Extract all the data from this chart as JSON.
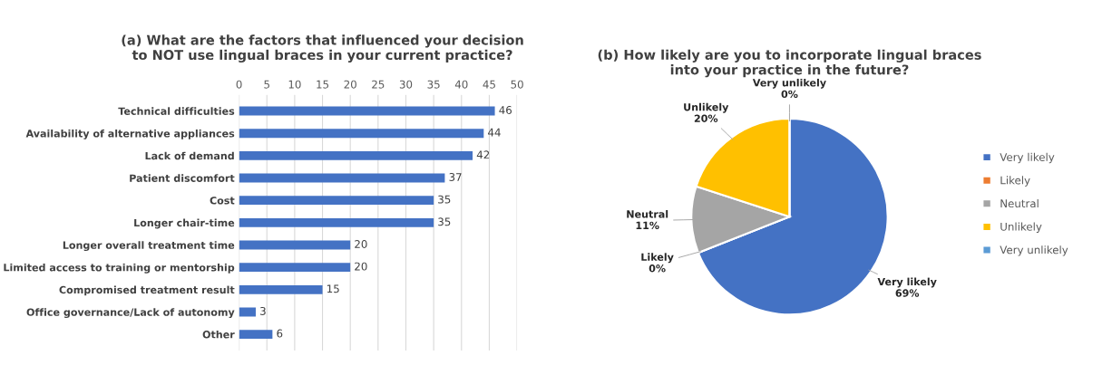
{
  "chart_data": [
    {
      "type": "bar",
      "orientation": "horizontal",
      "title": "(a) What are the factors that influenced your decision\nto NOT use lingual braces in your current practice?",
      "categories": [
        "Technical difficulties",
        "Availability of alternative appliances",
        "Lack of demand",
        "Patient discomfort",
        "Cost",
        "Longer chair-time",
        "Longer overall treatment time",
        "Limited access to training or mentorship",
        "Compromised treatment result",
        "Office governance/Lack of autonomy",
        "Other"
      ],
      "values": [
        46,
        44,
        42,
        37,
        35,
        35,
        20,
        20,
        15,
        3,
        6
      ],
      "color": "#4472c4",
      "xlim": [
        0,
        50
      ],
      "xticks": [
        0,
        5,
        10,
        15,
        20,
        25,
        30,
        35,
        40,
        45,
        50
      ],
      "grid": "x",
      "data_labels": true
    },
    {
      "type": "pie",
      "title": "(b) How likely are you to incorporate lingual braces\ninto your practice in the future?",
      "categories": [
        "Very likely",
        "Likely",
        "Neutral",
        "Unlikely",
        "Very unlikely"
      ],
      "values": [
        69,
        0,
        11,
        20,
        0
      ],
      "value_labels": [
        "69%",
        "0%",
        "11%",
        "20%",
        "0%"
      ],
      "colors": [
        "#4472c4",
        "#ed7d31",
        "#a5a5a5",
        "#ffc000",
        "#5b9bd5"
      ],
      "legend": "right"
    }
  ]
}
